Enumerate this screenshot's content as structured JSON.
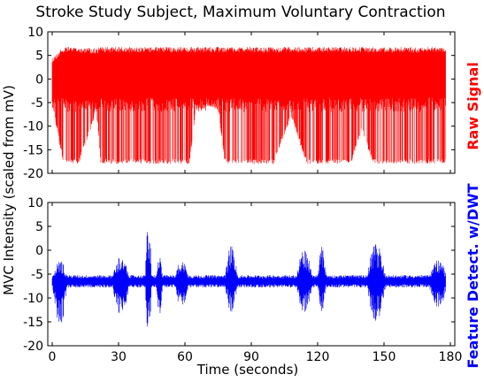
{
  "chart_data": {
    "type": "line",
    "title": "Stroke Study Subject, Maximum Voluntary Contraction",
    "xlabel": "Time (seconds)",
    "ylabel": "MVC Intensity (scaled from mV)",
    "xlim": [
      -2,
      182
    ],
    "x_ticks": [
      "0",
      "30",
      "60",
      "90",
      "120",
      "150",
      "180"
    ],
    "grid": false,
    "panels": [
      {
        "name": "Raw Signal",
        "color": "#ff0000",
        "ylim": [
          -20,
          10
        ],
        "y_ticks": [
          "10",
          "5",
          "0",
          "-5",
          "-10",
          "-15",
          "-20"
        ],
        "envelope": [
          {
            "t": 0,
            "upper": 4.5,
            "lower": -5.5
          },
          {
            "t": 5,
            "upper": 6.8,
            "lower": -18
          },
          {
            "t": 12,
            "upper": 6.8,
            "lower": -18
          },
          {
            "t": 20,
            "upper": 6.5,
            "lower": -7
          },
          {
            "t": 22,
            "upper": 6.8,
            "lower": -18
          },
          {
            "t": 38,
            "upper": 6.8,
            "lower": -18
          },
          {
            "t": 45,
            "upper": 6.8,
            "lower": -18
          },
          {
            "t": 60,
            "upper": 6.8,
            "lower": -18
          },
          {
            "t": 62,
            "upper": 6.8,
            "lower": -18
          },
          {
            "t": 65,
            "upper": 6.8,
            "lower": -6.5
          },
          {
            "t": 75,
            "upper": 6.8,
            "lower": -6
          },
          {
            "t": 78,
            "upper": 6.8,
            "lower": -18
          },
          {
            "t": 100,
            "upper": 6.8,
            "lower": -18
          },
          {
            "t": 108,
            "upper": 6.8,
            "lower": -8
          },
          {
            "t": 115,
            "upper": 6.8,
            "lower": -18
          },
          {
            "t": 135,
            "upper": 6.8,
            "lower": -18
          },
          {
            "t": 140,
            "upper": 6.8,
            "lower": -11
          },
          {
            "t": 145,
            "upper": 6.8,
            "lower": -18
          },
          {
            "t": 178,
            "upper": 6.8,
            "lower": -18
          }
        ]
      },
      {
        "name": "Feature Detect. w/DWT",
        "color": "#0000ff",
        "ylim": [
          -20,
          10
        ],
        "y_ticks": [
          "10",
          "5",
          "0",
          "-5",
          "-10",
          "-15",
          "-20"
        ],
        "baseline": -6.5,
        "bursts": [
          {
            "t_start": 0,
            "t_end": 7,
            "upper": -2,
            "lower": -16
          },
          {
            "t_start": 27,
            "t_end": 35,
            "upper": -1,
            "lower": -14
          },
          {
            "t_start": 42,
            "t_end": 45,
            "upper": 6,
            "lower": -18
          },
          {
            "t_start": 47,
            "t_end": 50,
            "upper": -1,
            "lower": -14
          },
          {
            "t_start": 55,
            "t_end": 62,
            "upper": -2,
            "lower": -12
          },
          {
            "t_start": 78,
            "t_end": 84,
            "upper": 1,
            "lower": -13
          },
          {
            "t_start": 110,
            "t_end": 118,
            "upper": 0,
            "lower": -13
          },
          {
            "t_start": 120,
            "t_end": 124,
            "upper": 1,
            "lower": -13
          },
          {
            "t_start": 142,
            "t_end": 151,
            "upper": 1.5,
            "lower": -15
          },
          {
            "t_start": 170,
            "t_end": 179,
            "upper": -2,
            "lower": -12
          }
        ]
      }
    ]
  }
}
